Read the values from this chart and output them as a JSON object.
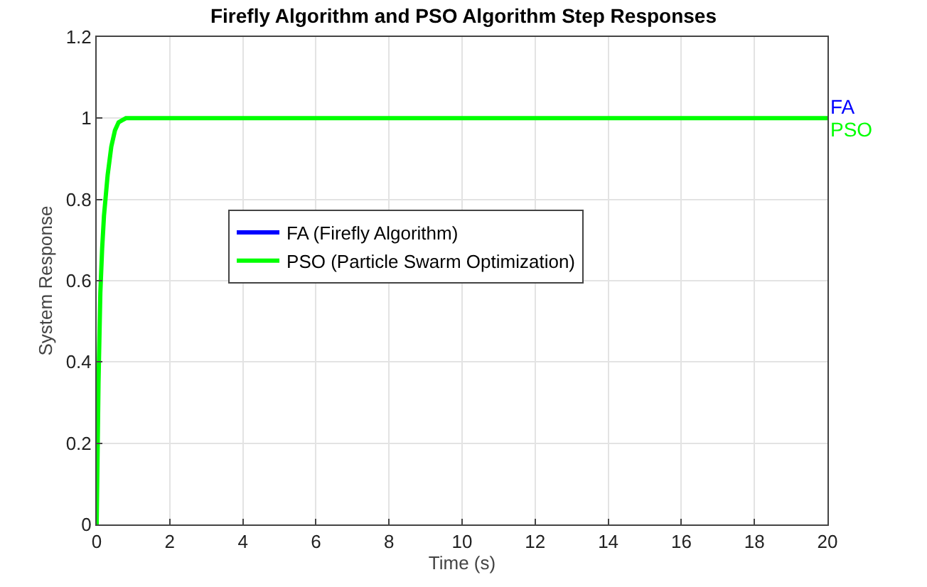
{
  "chart_data": {
    "type": "line",
    "title": "Firefly Algorithm and PSO Algorithm Step Responses",
    "xlabel": "Time (s)",
    "ylabel": "System Response",
    "x": [
      0,
      0.05,
      0.1,
      0.15,
      0.2,
      0.3,
      0.4,
      0.5,
      0.6,
      0.7,
      0.8,
      1,
      2,
      5,
      10,
      15,
      20
    ],
    "series": [
      {
        "name": "FA (Firefly Algorithm)",
        "color": "#0000ff",
        "values": [
          null,
          null,
          null,
          null,
          null,
          null,
          null,
          null,
          null,
          null,
          null,
          null,
          null,
          null,
          null,
          null,
          null
        ]
      },
      {
        "name": "PSO (Particle Swarm Optimization)",
        "color": "#00ff00",
        "values": [
          0,
          0.35,
          0.57,
          0.68,
          0.76,
          0.86,
          0.93,
          0.97,
          0.99,
          0.995,
          1,
          1,
          1,
          1,
          1,
          1,
          1
        ]
      }
    ],
    "annotations": [
      {
        "text": "FA",
        "x": 20,
        "y": 1
      },
      {
        "text": "PSO",
        "x": 20,
        "y": 1
      }
    ],
    "xlim": [
      0,
      20
    ],
    "xticks": [
      0,
      2,
      4,
      6,
      8,
      10,
      12,
      14,
      16,
      18,
      20
    ],
    "ylim": [
      0,
      1.2
    ],
    "yticks": [
      0,
      0.2,
      0.4,
      0.6,
      0.8,
      1,
      1.2
    ],
    "grid": true,
    "legend": "center left",
    "line_style": "solid",
    "marker": "none"
  }
}
